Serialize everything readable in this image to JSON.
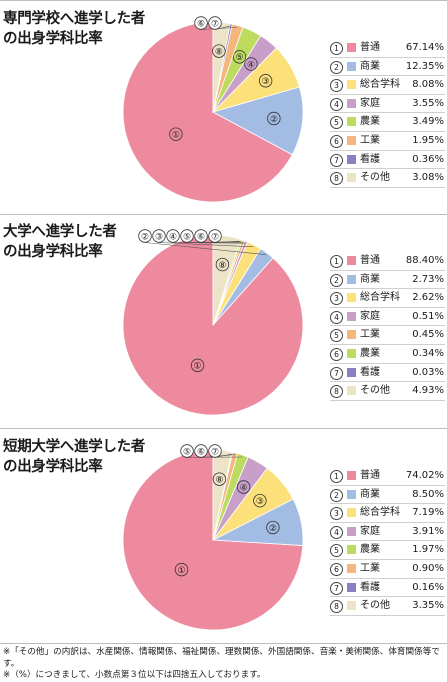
{
  "colors": {
    "普通": "#ee8a9e",
    "商業": "#a3bce4",
    "総合学科": "#fce07a",
    "家庭": "#c89fc8",
    "農業": "#bddb5f",
    "工業": "#f4b57e",
    "看護": "#8b7fc0",
    "その他": "#ede3c6"
  },
  "chart_data": [
    {
      "type": "pie",
      "title": "専門学校へ進学した者\nの出身学科比率",
      "slices": [
        {
          "num": "①",
          "label": "普通",
          "value": 67.14,
          "display": "67.14%"
        },
        {
          "num": "②",
          "label": "商業",
          "value": 12.35,
          "display": "12.35%"
        },
        {
          "num": "③",
          "label": "総合学科",
          "value": 8.08,
          "display": "8.08%"
        },
        {
          "num": "④",
          "label": "家庭",
          "value": 3.55,
          "display": "3.55%"
        },
        {
          "num": "⑤",
          "label": "農業",
          "value": 3.49,
          "display": "3.49%"
        },
        {
          "num": "⑥",
          "label": "工業",
          "value": 1.95,
          "display": "1.95%"
        },
        {
          "num": "⑦",
          "label": "看護",
          "value": 0.36,
          "display": "0.36%"
        },
        {
          "num": "⑧",
          "label": "その他",
          "value": 3.08,
          "display": "3.08%"
        }
      ]
    },
    {
      "type": "pie",
      "title": "大学へ進学した者\nの出身学科比率",
      "slices": [
        {
          "num": "①",
          "label": "普通",
          "value": 88.4,
          "display": "88.40%"
        },
        {
          "num": "②",
          "label": "商業",
          "value": 2.73,
          "display": "2.73%"
        },
        {
          "num": "③",
          "label": "総合学科",
          "value": 2.62,
          "display": "2.62%"
        },
        {
          "num": "④",
          "label": "家庭",
          "value": 0.51,
          "display": "0.51%"
        },
        {
          "num": "⑤",
          "label": "工業",
          "value": 0.45,
          "display": "0.45%"
        },
        {
          "num": "⑥",
          "label": "農業",
          "value": 0.34,
          "display": "0.34%"
        },
        {
          "num": "⑦",
          "label": "看護",
          "value": 0.03,
          "display": "0.03%"
        },
        {
          "num": "⑧",
          "label": "その他",
          "value": 4.93,
          "display": "4.93%"
        }
      ]
    },
    {
      "type": "pie",
      "title": "短期大学へ進学した者\nの出身学科比率",
      "slices": [
        {
          "num": "①",
          "label": "普通",
          "value": 74.02,
          "display": "74.02%"
        },
        {
          "num": "②",
          "label": "商業",
          "value": 8.5,
          "display": "8.50%"
        },
        {
          "num": "③",
          "label": "総合学科",
          "value": 7.19,
          "display": "7.19%"
        },
        {
          "num": "④",
          "label": "家庭",
          "value": 3.91,
          "display": "3.91%"
        },
        {
          "num": "⑤",
          "label": "農業",
          "value": 1.97,
          "display": "1.97%"
        },
        {
          "num": "⑥",
          "label": "工業",
          "value": 0.9,
          "display": "0.90%"
        },
        {
          "num": "⑦",
          "label": "看護",
          "value": 0.16,
          "display": "0.16%"
        },
        {
          "num": "⑧",
          "label": "その他",
          "value": 3.35,
          "display": "3.35%"
        }
      ]
    }
  ],
  "notes": [
    "※「その他」の内訳は、水産関係、情報関係、福祉関係、理数関係、外国語関係、音楽・美術関係、体育関係等です。",
    "※（%）につきまして、小数点第３位以下は四捨五入しております。"
  ]
}
